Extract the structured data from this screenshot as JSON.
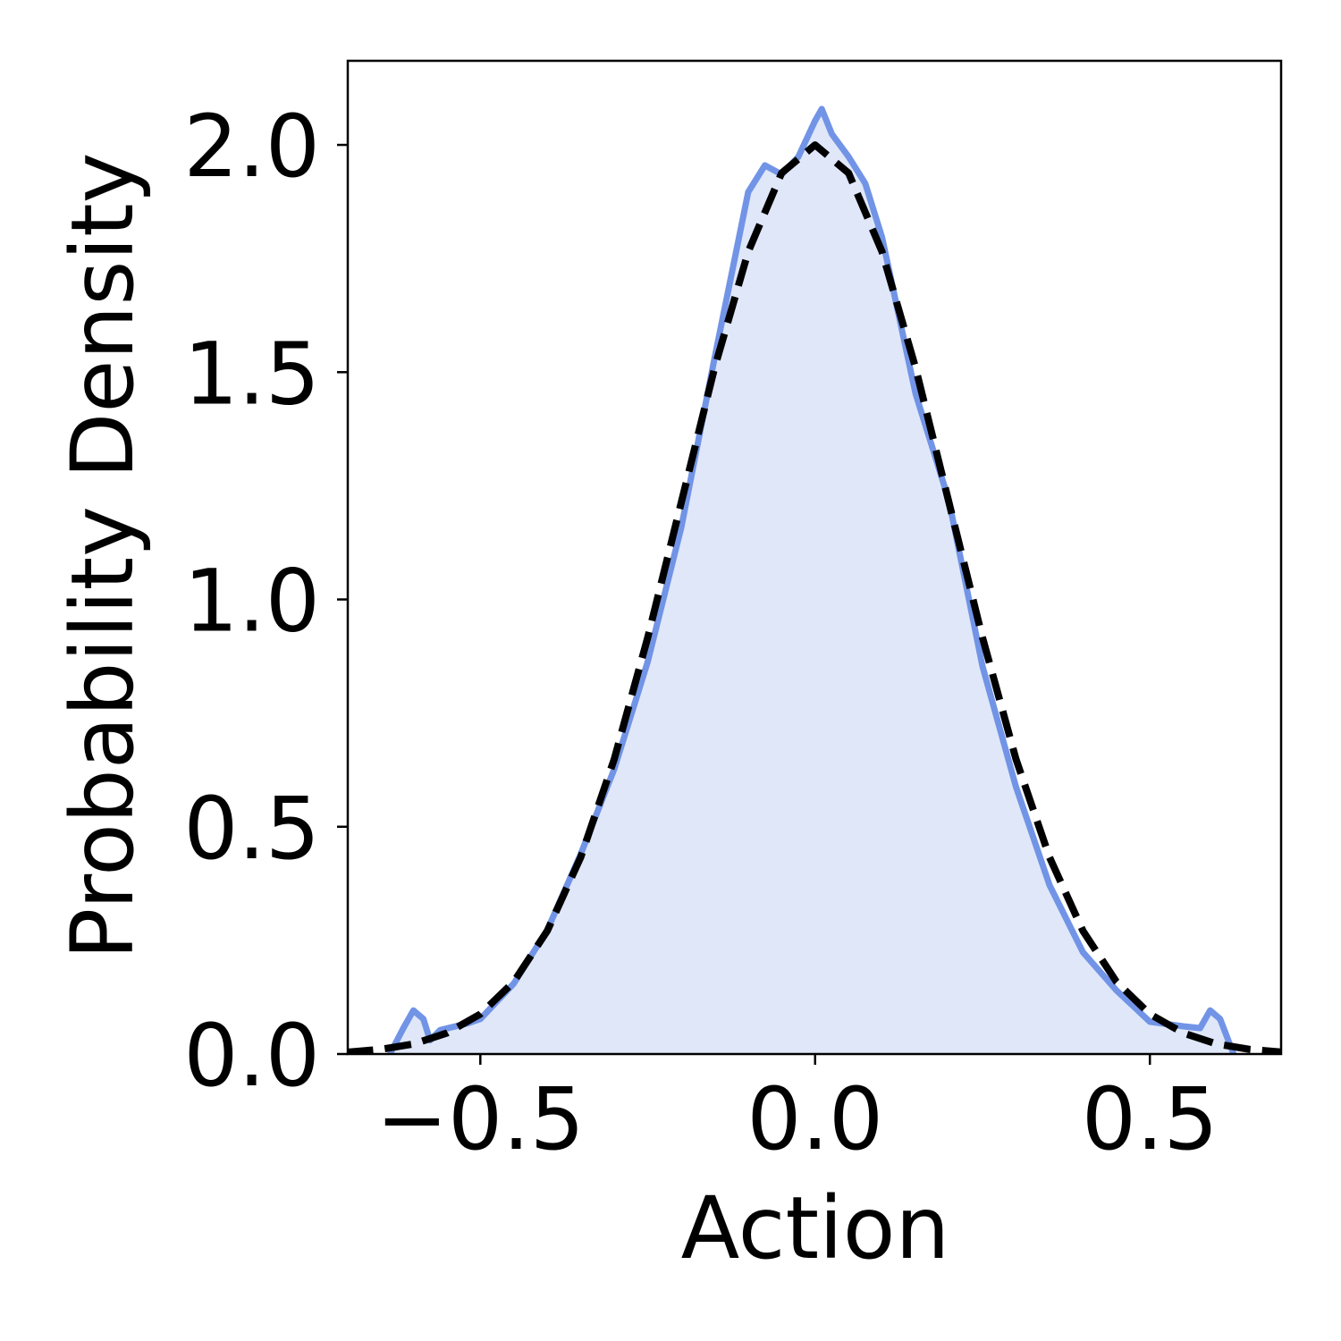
{
  "chart_data": {
    "type": "line",
    "xlabel": "Action",
    "ylabel": "Probability Density",
    "xlim": [
      -0.698,
      0.696
    ],
    "ylim": [
      0,
      2.185
    ],
    "xticks": [
      {
        "value": -0.5,
        "label": "−0.5"
      },
      {
        "value": 0,
        "label": "0.0"
      },
      {
        "value": 0.5,
        "label": "0.5"
      }
    ],
    "yticks": [
      {
        "value": 0,
        "label": "0.0"
      },
      {
        "value": 0.5,
        "label": "0.5"
      },
      {
        "value": 1,
        "label": "1.0"
      },
      {
        "value": 1.5,
        "label": "1.5"
      },
      {
        "value": 2,
        "label": "2.0"
      }
    ],
    "series": [
      {
        "color": "#7294e6",
        "fill": "#dfe7f9",
        "dashed": false,
        "x": [
          -0.635,
          -0.615,
          -0.6,
          -0.585,
          -0.575,
          -0.56,
          -0.52,
          -0.5,
          -0.45,
          -0.4,
          -0.35,
          -0.3,
          -0.25,
          -0.2,
          -0.15,
          -0.1,
          -0.075,
          -0.05,
          -0.025,
          0,
          0.01,
          0.025,
          0.05,
          0.075,
          0.1,
          0.15,
          0.2,
          0.25,
          0.3,
          0.35,
          0.4,
          0.45,
          0.5,
          0.55,
          0.575,
          0.59,
          0.605,
          0.625
        ],
        "values": [
          0,
          0.057,
          0.096,
          0.077,
          0.03,
          0.053,
          0.067,
          0.077,
          0.155,
          0.273,
          0.44,
          0.627,
          0.863,
          1.158,
          1.532,
          1.896,
          1.955,
          1.935,
          1.974,
          2.053,
          2.079,
          2.024,
          1.974,
          1.915,
          1.797,
          1.453,
          1.217,
          0.853,
          0.588,
          0.372,
          0.224,
          0.14,
          0.071,
          0.061,
          0.057,
          0.096,
          0.077,
          0
        ]
      },
      {
        "color": "#000000",
        "dashed": true,
        "x": [
          -0.7,
          -0.65,
          -0.6,
          -0.55,
          -0.5,
          -0.45,
          -0.4,
          -0.35,
          -0.3,
          -0.25,
          -0.2,
          -0.15,
          -0.1,
          -0.05,
          0,
          0.05,
          0.1,
          0.15,
          0.2,
          0.25,
          0.3,
          0.35,
          0.4,
          0.45,
          0.5,
          0.55,
          0.6,
          0.65,
          0.7
        ],
        "values": [
          0.004,
          0.01,
          0.022,
          0.046,
          0.088,
          0.159,
          0.271,
          0.433,
          0.649,
          0.916,
          1.213,
          1.51,
          1.765,
          1.938,
          2,
          1.938,
          1.765,
          1.51,
          1.213,
          0.916,
          0.649,
          0.433,
          0.271,
          0.159,
          0.088,
          0.046,
          0.022,
          0.01,
          0.004
        ]
      }
    ]
  }
}
